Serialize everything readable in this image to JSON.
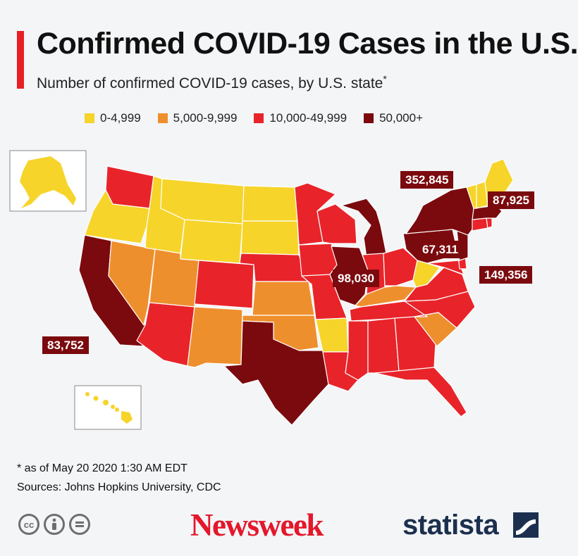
{
  "header": {
    "title": "Confirmed COVID-19 Cases in the U.S.",
    "subtitle": "Number of confirmed COVID-19 cases, by U.S. state",
    "subtitle_mark": "*"
  },
  "legend": [
    {
      "label": "0-4,999",
      "color": "#f6d42a"
    },
    {
      "label": "5,000-9,999",
      "color": "#ee8f2d"
    },
    {
      "label": "10,000-49,999",
      "color": "#e8242a"
    },
    {
      "label": "50,000+",
      "color": "#7b0a0e"
    }
  ],
  "callouts": {
    "new_york": "352,845",
    "massachusetts": "87,925",
    "pennsylvania": "67,311",
    "illinois": "98,030",
    "new_jersey": "149,356",
    "california": "83,752"
  },
  "categories": {
    "WA": "mid",
    "OR": "low",
    "CA": "high",
    "NV": "mid-low",
    "ID": "low",
    "MT": "low",
    "WY": "low",
    "UT": "mid-low",
    "AZ": "mid",
    "CO": "mid",
    "NM": "mid-low",
    "ND": "low",
    "SD": "low",
    "NE": "mid",
    "KS": "mid-low",
    "OK": "mid-low",
    "TX": "high",
    "MN": "mid",
    "IA": "mid",
    "MO": "mid",
    "AR": "low",
    "LA": "mid",
    "WI": "mid",
    "IL": "high",
    "MI": "high",
    "IN": "mid",
    "OH": "mid",
    "KY": "mid-low",
    "TN": "mid",
    "MS": "mid",
    "AL": "mid",
    "GA": "mid",
    "FL": "mid",
    "SC": "mid-low",
    "NC": "mid",
    "VA": "mid",
    "WV": "low",
    "MD": "mid",
    "DE": "mid",
    "PA": "high",
    "NJ": "high",
    "NY": "high",
    "CT": "mid",
    "RI": "mid",
    "MA": "high",
    "VT": "low",
    "NH": "low",
    "ME": "low",
    "AK": "low",
    "HI": "low"
  },
  "footer": {
    "footnote": "* as of May 20 2020 1:30 AM EDT",
    "sources": "Sources: Johns Hopkins University, CDC",
    "newsweek": "Newsweek",
    "statista": "statista"
  },
  "icons": [
    "cc-icon",
    "by-person-icon",
    "nd-equals-icon",
    "statista-logo-icon"
  ]
}
